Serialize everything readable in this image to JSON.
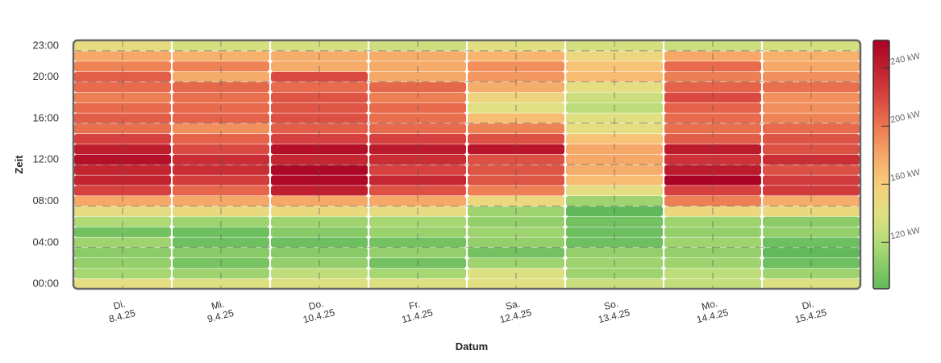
{
  "chart_data": {
    "type": "heatmap",
    "title": "",
    "xlabel": "Datum",
    "ylabel": "Zeit",
    "x_categories": [
      {
        "day": "Di.",
        "date": "8.4.25"
      },
      {
        "day": "Mi.",
        "date": "9.4.25"
      },
      {
        "day": "Do.",
        "date": "10.4.25"
      },
      {
        "day": "Fr.",
        "date": "11.4.25"
      },
      {
        "day": "Sa.",
        "date": "12.4.25"
      },
      {
        "day": "So.",
        "date": "13.4.25"
      },
      {
        "day": "Mo.",
        "date": "14.4.25"
      },
      {
        "day": "Di.",
        "date": "15.4.25"
      }
    ],
    "y_hours": [
      0,
      1,
      2,
      3,
      4,
      5,
      6,
      7,
      8,
      9,
      10,
      11,
      12,
      13,
      14,
      15,
      16,
      17,
      18,
      19,
      20,
      21,
      22,
      23
    ],
    "y_ticks": [
      {
        "hour": 0,
        "label": "00:00"
      },
      {
        "hour": 4,
        "label": "04:00"
      },
      {
        "hour": 8,
        "label": "08:00"
      },
      {
        "hour": 12,
        "label": "12:00"
      },
      {
        "hour": 16,
        "label": "16:00"
      },
      {
        "hour": 20,
        "label": "20:00"
      },
      {
        "hour": 23,
        "label": "23:00"
      }
    ],
    "unit": "kW",
    "values_by_day_hour": [
      [
        143,
        115,
        108,
        105,
        112,
        95,
        118,
        145,
        180,
        222,
        238,
        238,
        250,
        242,
        222,
        203,
        210,
        205,
        197,
        205,
        210,
        195,
        180,
        145
      ],
      [
        138,
        112,
        97,
        103,
        93,
        93,
        112,
        148,
        180,
        207,
        224,
        232,
        232,
        218,
        208,
        190,
        208,
        205,
        203,
        206,
        178,
        195,
        175,
        135
      ],
      [
        138,
        125,
        108,
        103,
        93,
        103,
        112,
        148,
        180,
        240,
        255,
        255,
        236,
        250,
        222,
        210,
        215,
        214,
        214,
        205,
        218,
        178,
        177,
        135
      ],
      [
        138,
        115,
        95,
        108,
        95,
        110,
        115,
        145,
        180,
        215,
        236,
        222,
        232,
        243,
        222,
        205,
        203,
        205,
        197,
        206,
        180,
        178,
        177,
        132
      ],
      [
        140,
        138,
        112,
        95,
        108,
        112,
        108,
        112,
        150,
        197,
        214,
        214,
        215,
        246,
        215,
        195,
        168,
        140,
        152,
        177,
        187,
        190,
        172,
        140
      ],
      [
        130,
        112,
        112,
        108,
        93,
        93,
        95,
        88,
        112,
        143,
        168,
        177,
        180,
        180,
        165,
        143,
        140,
        124,
        130,
        143,
        168,
        165,
        150,
        135
      ],
      [
        127,
        124,
        112,
        108,
        112,
        108,
        112,
        150,
        197,
        222,
        258,
        243,
        230,
        243,
        210,
        203,
        205,
        208,
        218,
        208,
        197,
        205,
        180,
        130
      ],
      [
        138,
        112,
        93,
        88,
        93,
        108,
        105,
        148,
        177,
        225,
        225,
        215,
        232,
        215,
        214,
        205,
        195,
        190,
        190,
        203,
        190,
        180,
        175,
        135
      ]
    ],
    "colorscale": {
      "min": 88,
      "max": 259,
      "ticks": [
        {
          "value": 120,
          "label": "120 kW"
        },
        {
          "value": 160,
          "label": "160 kW"
        },
        {
          "value": 200,
          "label": "200 kW"
        },
        {
          "value": 240,
          "label": "240 kW"
        }
      ],
      "stops": [
        [
          85,
          "#5ab65a"
        ],
        [
          105,
          "#8ccc68"
        ],
        [
          120,
          "#b4dc78"
        ],
        [
          140,
          "#e0e082"
        ],
        [
          160,
          "#f8cc7a"
        ],
        [
          180,
          "#f5a868"
        ],
        [
          200,
          "#ec7850"
        ],
        [
          220,
          "#d84440"
        ],
        [
          240,
          "#c0202e"
        ],
        [
          260,
          "#a80024"
        ]
      ]
    }
  }
}
